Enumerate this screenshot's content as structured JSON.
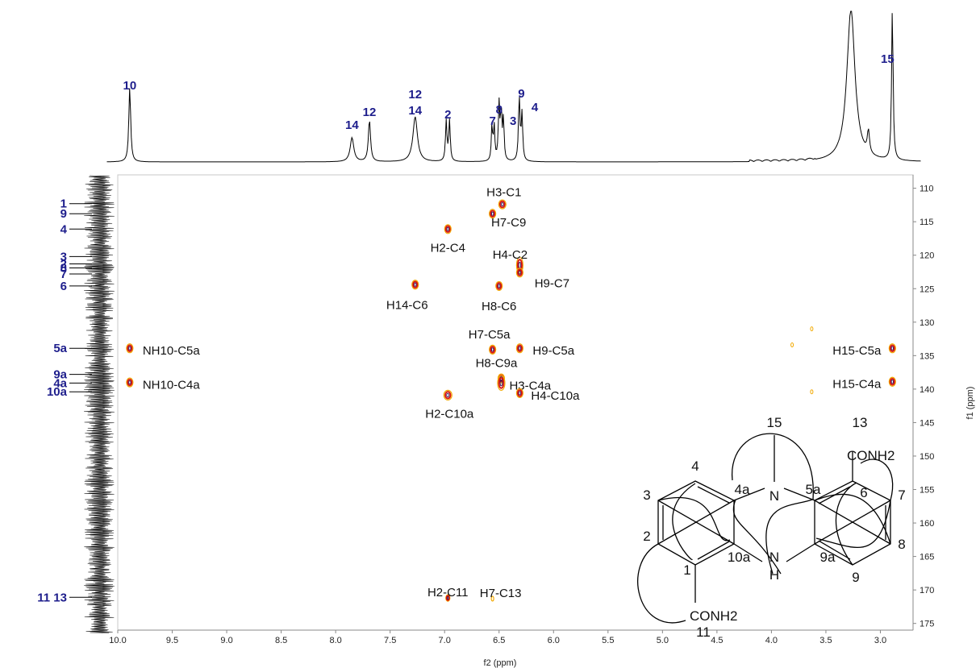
{
  "chart_data": {
    "type": "scatter",
    "title": "",
    "xlabel": "f2 (ppm)",
    "ylabel": "f1 (ppm)",
    "xlim": [
      10.0,
      2.7
    ],
    "ylim": [
      108,
      176
    ],
    "x_ticks": [
      "10.0",
      "9.5",
      "9.0",
      "8.5",
      "8.0",
      "7.5",
      "7.0",
      "6.5",
      "6.0",
      "5.5",
      "5.0",
      "4.5",
      "4.0",
      "3.5",
      "3.0"
    ],
    "y_ticks": [
      "110",
      "115",
      "120",
      "125",
      "130",
      "135",
      "140",
      "145",
      "150",
      "155",
      "160",
      "165",
      "170",
      "175"
    ],
    "proton_peaks": [
      {
        "label": "10",
        "x": 9.89
      },
      {
        "label": "14",
        "x": 7.85
      },
      {
        "label": "12",
        "x": 7.69
      },
      {
        "label": "12\n14",
        "x": 7.27
      },
      {
        "label": "2",
        "x": 6.97
      },
      {
        "label": "7",
        "x": 6.56
      },
      {
        "label": "8",
        "x": 6.5
      },
      {
        "label": "3",
        "x": 6.46
      },
      {
        "label": "9",
        "x": 6.31
      },
      {
        "label": "4",
        "x": 6.29
      },
      {
        "label": "15",
        "x": 2.89
      }
    ],
    "carbon_peaks": [
      {
        "label": "1",
        "y": 112.3
      },
      {
        "label": "9",
        "y": 113.8
      },
      {
        "label": "4",
        "y": 116.1
      },
      {
        "label": "3",
        "y": 120.2
      },
      {
        "label": "2",
        "y": 121.3
      },
      {
        "label": "8",
        "y": 121.9
      },
      {
        "label": "7",
        "y": 122.8
      },
      {
        "label": "6",
        "y": 124.6
      },
      {
        "label": "5a",
        "y": 133.9
      },
      {
        "label": "9a",
        "y": 137.8
      },
      {
        "label": "4a",
        "y": 139.1
      },
      {
        "label": "10a",
        "y": 140.4
      },
      {
        "label": "11 13",
        "y": 171.1
      }
    ],
    "correlations": [
      {
        "label": "H3-C1",
        "x": 6.47,
        "y": 112.4
      },
      {
        "label": "H7-C9",
        "x": 6.56,
        "y": 113.8
      },
      {
        "label": "H2-C4",
        "x": 6.97,
        "y": 116.1
      },
      {
        "label": "H4-C2",
        "x": 6.31,
        "y": 121.5
      },
      {
        "label": "H9-C7",
        "x": 6.31,
        "y": 122.6
      },
      {
        "label": "H14-C6",
        "x": 7.27,
        "y": 124.4
      },
      {
        "label": "H8-C6",
        "x": 6.5,
        "y": 124.6
      },
      {
        "label": "H7-C5a",
        "x": 6.56,
        "y": 134.1
      },
      {
        "label": "H9-C5a",
        "x": 6.31,
        "y": 133.9
      },
      {
        "label": "NH10-C5a",
        "x": 9.89,
        "y": 133.9
      },
      {
        "label": "H15-C5a",
        "x": 2.89,
        "y": 133.9
      },
      {
        "label": "H8-C9a",
        "x": 6.48,
        "y": 138.4
      },
      {
        "label": "H3-C4a",
        "x": 6.48,
        "y": 139.1
      },
      {
        "label": "NH10-C4a",
        "x": 9.89,
        "y": 139.0
      },
      {
        "label": "H15-C4a",
        "x": 2.89,
        "y": 138.9
      },
      {
        "label": "H2-C10a",
        "x": 6.97,
        "y": 140.9
      },
      {
        "label": "H4-C10a",
        "x": 6.31,
        "y": 140.6
      },
      {
        "label": "H2-C11",
        "x": 6.97,
        "y": 171.2
      },
      {
        "label": "H7-C13",
        "x": 6.56,
        "y": 171.3
      }
    ],
    "structure_labels": [
      "15",
      "13",
      "CONH2",
      "4",
      "4a",
      "N",
      "5a",
      "6",
      "3",
      "7",
      "2",
      "8",
      "1",
      "10a",
      "N",
      "H",
      "9a",
      "9",
      "CONH2",
      "11"
    ]
  },
  "colors": {
    "peak_label": "#1e1e8c",
    "contour_outer": "#f2a900",
    "contour_mid": "#d9140e",
    "contour_inner": "#3a1a5a"
  }
}
